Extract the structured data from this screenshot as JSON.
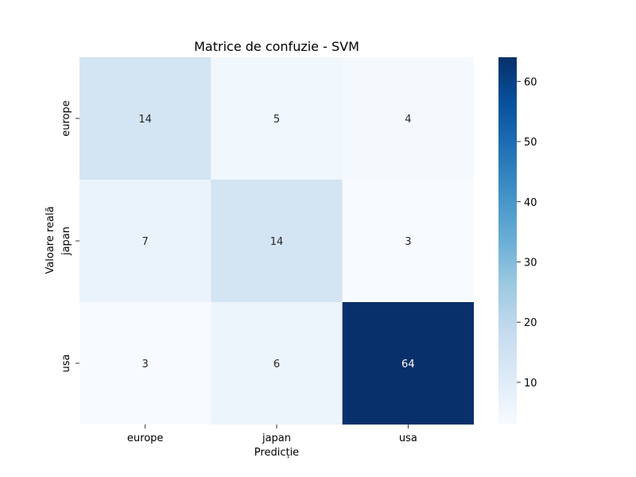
{
  "chart_data": {
    "type": "heatmap",
    "title": "Matrice de confuzie - SVM",
    "xlabel": "Predicție",
    "ylabel": "Valoare reală",
    "x_categories": [
      "europe",
      "japan",
      "usa"
    ],
    "y_categories": [
      "europe",
      "japan",
      "usa"
    ],
    "values": [
      [
        14,
        5,
        4
      ],
      [
        7,
        14,
        3
      ],
      [
        3,
        6,
        64
      ]
    ],
    "colormap": "Blues",
    "color_range": [
      3,
      64
    ],
    "colorbar_ticks": [
      10,
      20,
      30,
      40,
      50,
      60
    ],
    "annotations": true,
    "colorbar": true
  }
}
